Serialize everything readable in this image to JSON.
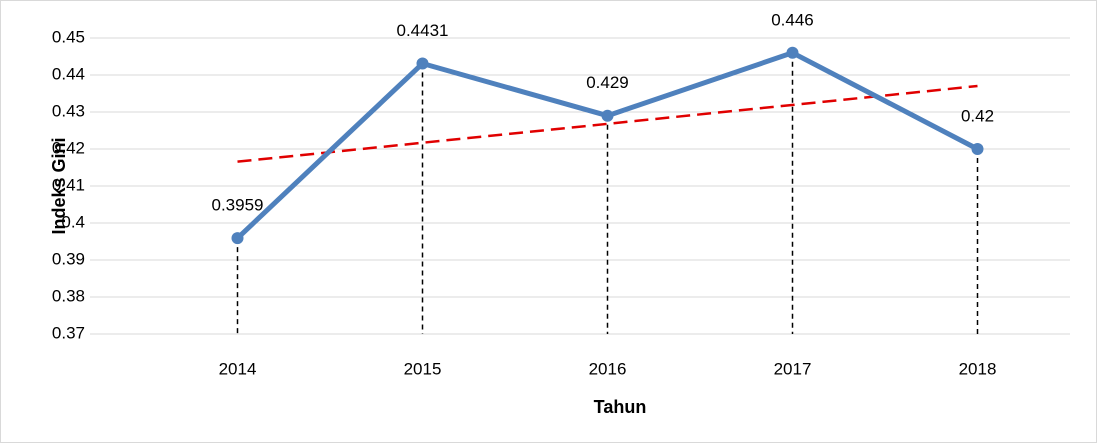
{
  "chart_data": {
    "type": "line",
    "x_label": "Tahun",
    "y_label": "Indeks Gini",
    "categories": [
      "2014",
      "2015",
      "2016",
      "2017",
      "2018"
    ],
    "series": [
      {
        "name": "Indeks Gini",
        "color": "#4f81bd",
        "values": [
          0.3959,
          0.4431,
          0.429,
          0.446,
          0.42
        ]
      }
    ],
    "ylim": [
      0.37,
      0.45
    ],
    "yticks": [
      0.37,
      0.38,
      0.39,
      0.4,
      0.41,
      0.42,
      0.43,
      0.44,
      0.45
    ],
    "grid": true,
    "data_labels": true,
    "drop_lines": true,
    "trendline": {
      "type": "linear",
      "color": "#e00000",
      "dashed": true
    }
  }
}
